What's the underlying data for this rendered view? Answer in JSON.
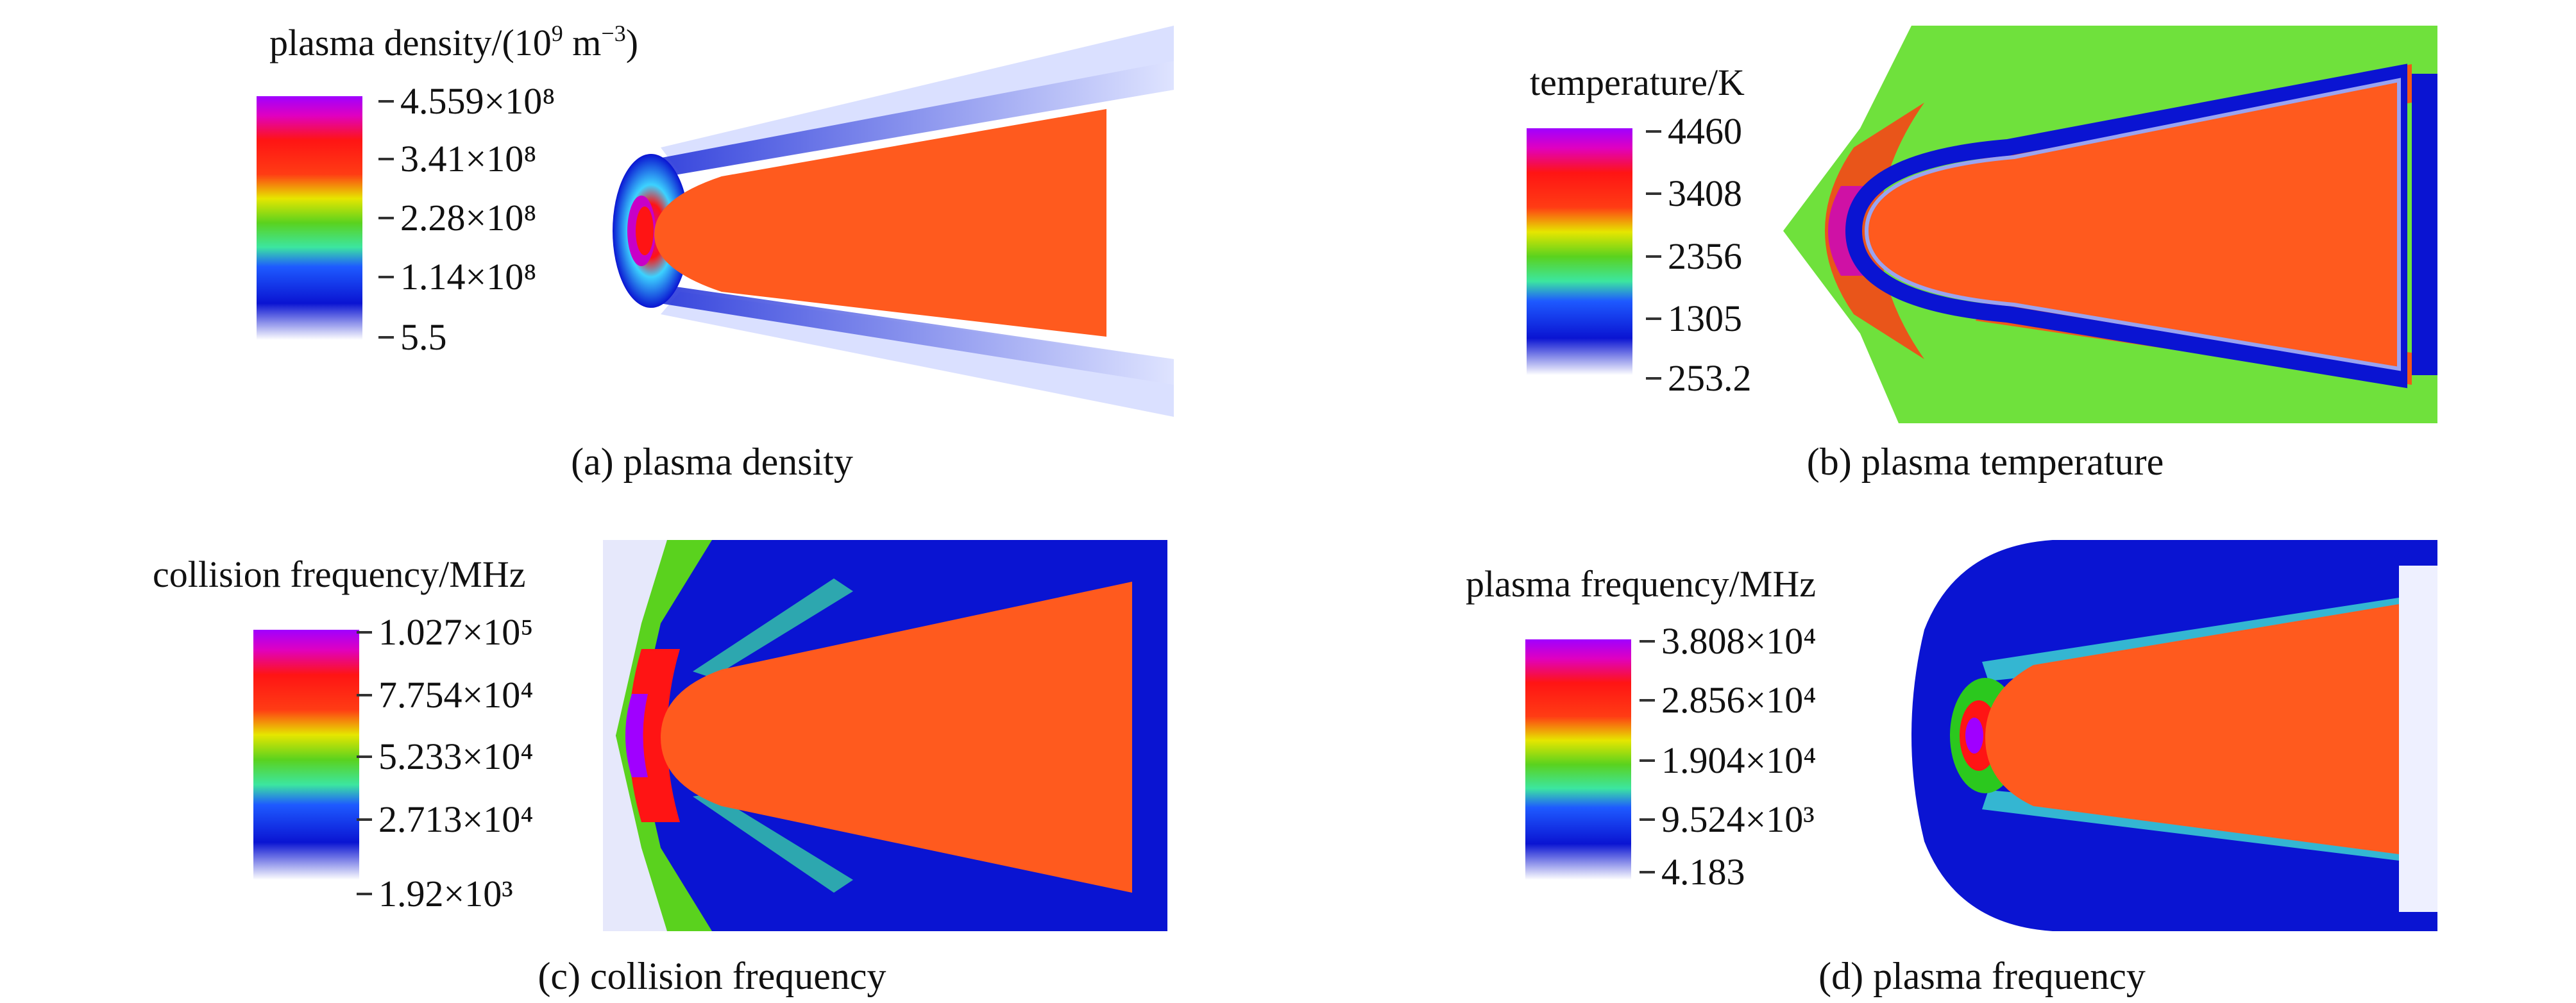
{
  "panels": [
    {
      "caption": "(a) plasma density",
      "colorbar_title": "plasma density/(10⁹ m⁻³)",
      "colorbar_ticks": [
        "4.559×10⁸",
        "3.41×10⁸",
        "2.28×10⁸",
        "1.14×10⁸",
        "5.5"
      ]
    },
    {
      "caption": "(b) plasma temperature",
      "colorbar_title": "temperature/K",
      "colorbar_ticks": [
        "4460",
        "3408",
        "2356",
        "1305",
        "253.2"
      ]
    },
    {
      "caption": "(c) collision frequency",
      "colorbar_title": "collision frequency/MHz",
      "colorbar_ticks": [
        "1.027×10⁵",
        "7.754×10⁴",
        "5.233×10⁴",
        "2.713×10⁴",
        "1.92×10³"
      ]
    },
    {
      "caption": "(d) plasma frequency",
      "colorbar_title": "plasma frequency/MHz",
      "colorbar_ticks": [
        "3.808×10⁴",
        "2.856×10⁴",
        "1.904×10⁴",
        "9.524×10³",
        "4.183"
      ]
    }
  ],
  "colors": {
    "body": "#ff5a1e",
    "colormap": [
      "#ffffff",
      "#0a14d2",
      "#3cd2ff",
      "#78e64b",
      "#2bc81e",
      "#ffe600",
      "#ff1414",
      "#c800c8",
      "#a000ff"
    ],
    "temperature_background": "#6fe13c"
  },
  "icons": [
    "colorbar-icon",
    "cone-body-icon"
  ]
}
